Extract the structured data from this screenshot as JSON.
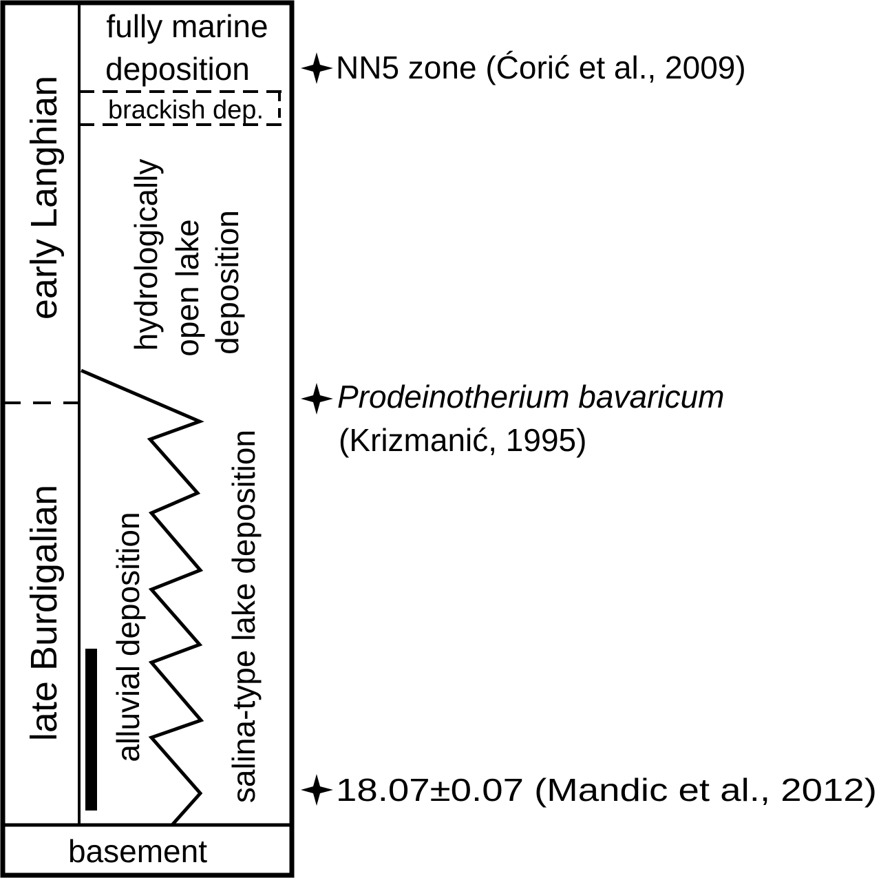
{
  "column": {
    "stages": {
      "upper": "early Langhian",
      "lower": "late Burdigalian"
    },
    "units": {
      "fully_marine": [
        "fully marine",
        "deposition"
      ],
      "brackish": "brackish dep.",
      "open_lake": [
        "hydrologically",
        "open lake",
        "deposition"
      ],
      "alluvial": "alluvial deposition",
      "salina": "salina-type lake deposition",
      "basement": "basement"
    }
  },
  "markers": [
    {
      "text": "NN5 zone (Ćorić et al., 2009)"
    },
    {
      "text_italic": "Prodeinotherium bavaricum",
      "text2": "(Krizmanić, 1995)"
    },
    {
      "text": "18.07±0.07 (Mandic et al., 2012)"
    }
  ]
}
